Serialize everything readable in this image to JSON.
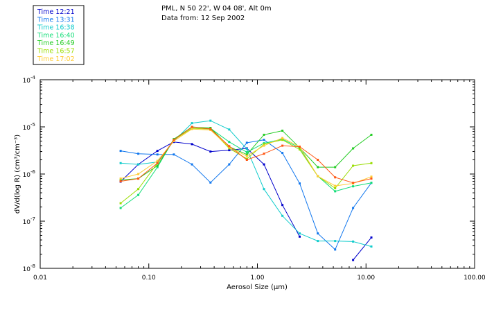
{
  "title": {
    "line1": "PML, N 50 22', W 04 08', Alt 0m",
    "line2": "Data from: 12 Sep 2002"
  },
  "chart_data": {
    "type": "line",
    "x_scale": "log",
    "y_scale": "log",
    "xlim": [
      0.01,
      100.0
    ],
    "ylim": [
      1e-08,
      0.0001
    ],
    "xlabel": "Aerosol Size (μm)",
    "ylabel": "dV/d(log R) (cm³/cm⁻³)",
    "x_ticks": [
      {
        "value": 0.01,
        "label": "0.01"
      },
      {
        "value": 0.1,
        "label": "0.10"
      },
      {
        "value": 1.0,
        "label": "1.00"
      },
      {
        "value": 10.0,
        "label": "10.00"
      },
      {
        "value": 100.0,
        "label": "100.00"
      }
    ],
    "y_ticks": [
      {
        "value": 1e-08,
        "mantissa": "10",
        "exponent": "-8"
      },
      {
        "value": 1e-07,
        "mantissa": "10",
        "exponent": "-7"
      },
      {
        "value": 1e-06,
        "mantissa": "10",
        "exponent": "-6"
      },
      {
        "value": 1e-05,
        "mantissa": "10",
        "exponent": "-5"
      },
      {
        "value": 0.0001,
        "mantissa": "10",
        "exponent": "-4"
      }
    ],
    "grid": false,
    "legend_placement": "top-left, outside plot",
    "x": [
      0.055,
      0.08,
      0.12,
      0.17,
      0.25,
      0.37,
      0.55,
      0.8,
      1.15,
      1.7,
      2.45,
      3.6,
      5.2,
      7.6,
      11.2
    ],
    "series": [
      {
        "name": "Time 12:21",
        "color": "#0000cc",
        "values": [
          6.9e-07,
          1.6e-06,
          3.1e-06,
          4.8e-06,
          4.3e-06,
          3e-06,
          3.2e-06,
          3.5e-06,
          1.6e-06,
          2.2e-07,
          4.7e-08,
          null,
          null,
          1.5e-08,
          4.5e-08
        ]
      },
      {
        "name": "Time 13:31",
        "color": "#1177ee",
        "values": [
          3.1e-06,
          2.7e-06,
          2.6e-06,
          2.6e-06,
          1.6e-06,
          6.6e-07,
          1.6e-06,
          4.6e-06,
          5.3e-06,
          2.8e-06,
          6.3e-07,
          5.5e-08,
          2.5e-08,
          1.9e-07,
          6.5e-07
        ]
      },
      {
        "name": "Time 16:38",
        "color": "#11cccc",
        "values": [
          1.7e-06,
          1.6e-06,
          1.8e-06,
          5e-06,
          1.2e-05,
          1.35e-05,
          8.8e-06,
          3.4e-06,
          4.8e-07,
          1.3e-07,
          5.5e-08,
          3.8e-08,
          3.8e-08,
          3.7e-08,
          2.9e-08
        ]
      },
      {
        "name": "Time 16:40",
        "color": "#11dd77",
        "values": [
          1.9e-07,
          3.6e-07,
          1.4e-06,
          5.5e-06,
          1e-05,
          9.3e-06,
          4.8e-06,
          2.9e-06,
          4.5e-06,
          5.5e-06,
          3.6e-06,
          9e-07,
          4.3e-07,
          5.5e-07,
          6.5e-07
        ]
      },
      {
        "name": "Time 16:49",
        "color": "#22cc22",
        "values": [
          7.5e-07,
          8e-07,
          1.5e-06,
          5.5e-06,
          9.8e-06,
          9.5e-06,
          3.8e-06,
          2.6e-06,
          6.8e-06,
          8.3e-06,
          3.6e-06,
          1.4e-06,
          1.4e-06,
          3.5e-06,
          6.8e-06
        ]
      },
      {
        "name": "Time 16:57",
        "color": "#99dd00",
        "values": [
          2.4e-07,
          4.8e-07,
          1.7e-06,
          5.3e-06,
          9.3e-06,
          9e-06,
          3.5e-06,
          2.1e-06,
          4.3e-06,
          5.3e-06,
          3.3e-06,
          9e-07,
          5e-07,
          1.5e-06,
          1.7e-06
        ]
      },
      {
        "name": "Time 17:02",
        "color": "#ffcc33",
        "values": [
          8e-07,
          1e-06,
          1.9e-06,
          5e-06,
          9e-06,
          8.6e-06,
          3.7e-06,
          2.4e-06,
          4e-06,
          5.8e-06,
          3.8e-06,
          9e-07,
          5.6e-07,
          6.3e-07,
          8.8e-07
        ]
      },
      {
        "name": "",
        "color": "#ff5511",
        "values": [
          7e-07,
          8e-07,
          1.7e-06,
          5.3e-06,
          1e-05,
          9e-06,
          3.9e-06,
          2e-06,
          2.7e-06,
          4e-06,
          3.8e-06,
          2e-06,
          8.5e-07,
          6.5e-07,
          8e-07
        ]
      }
    ]
  }
}
